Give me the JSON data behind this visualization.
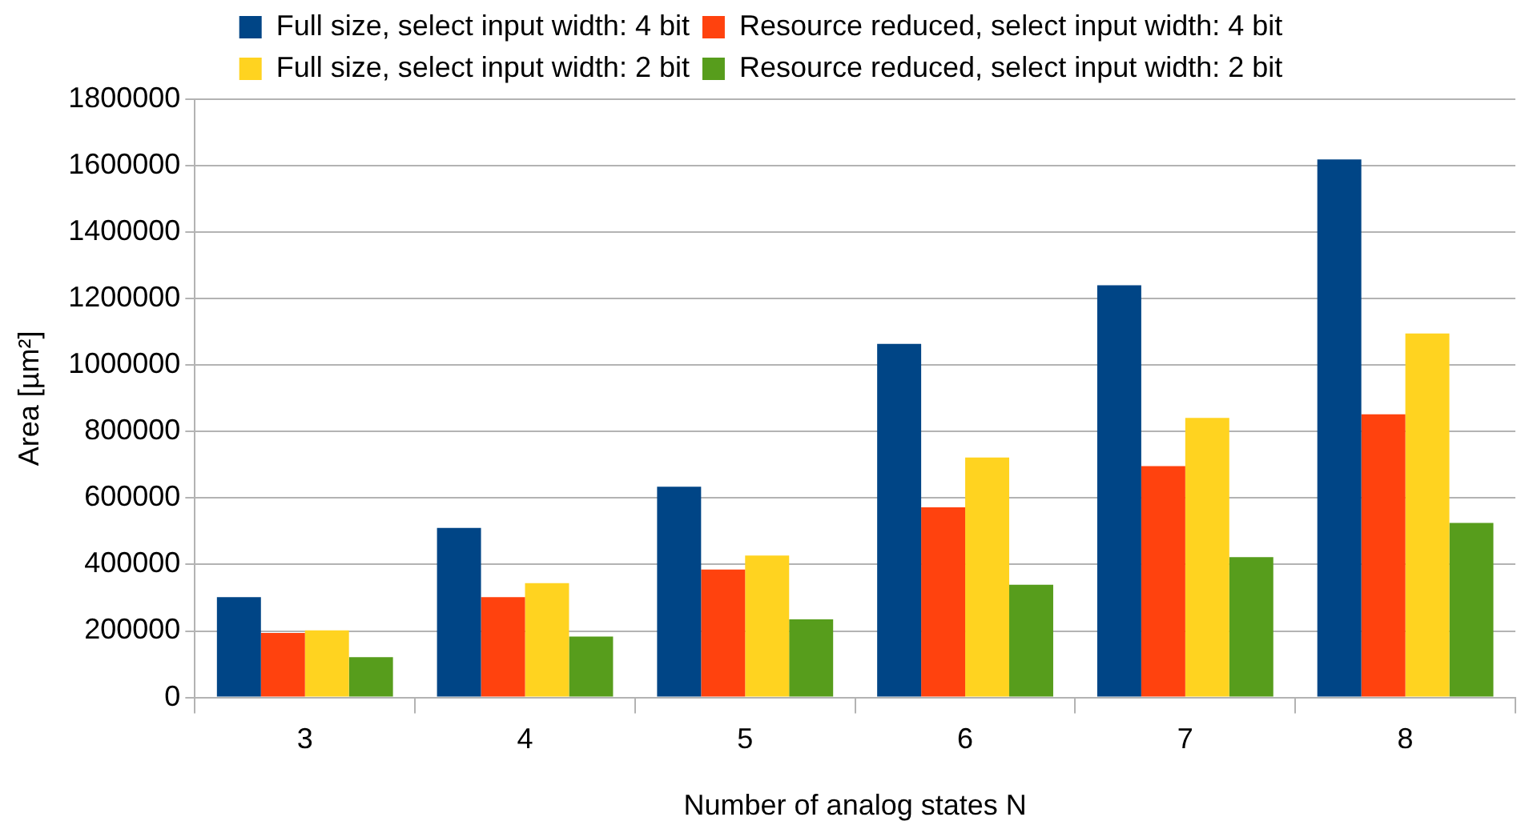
{
  "chart_data": {
    "type": "bar",
    "xlabel": "Number of analog states N",
    "ylabel": "Area [µm²]",
    "categories": [
      "3",
      "4",
      "5",
      "6",
      "7",
      "8"
    ],
    "series": [
      {
        "name": "Full size, select input width: 4 bit",
        "color": "#004586",
        "values": [
          302000,
          510000,
          634000,
          1064000,
          1240000,
          1619000
        ]
      },
      {
        "name": "Resource reduced, select input width: 4 bit",
        "color": "#ff420e",
        "values": [
          194000,
          302000,
          385000,
          572000,
          696000,
          852000
        ]
      },
      {
        "name": "Full size, select input width: 2 bit",
        "color": "#ffd320",
        "values": [
          202000,
          344000,
          427000,
          722000,
          841000,
          1095000
        ]
      },
      {
        "name": "Resource reduced, select input width: 2 bit",
        "color": "#579d1c",
        "values": [
          121000,
          183000,
          235000,
          339000,
          422000,
          525000
        ]
      }
    ],
    "ylim": [
      0,
      1800000
    ],
    "yticks": [
      0,
      200000,
      400000,
      600000,
      800000,
      1000000,
      1200000,
      1400000,
      1600000,
      1800000
    ],
    "grid": "y",
    "legend": "top"
  }
}
